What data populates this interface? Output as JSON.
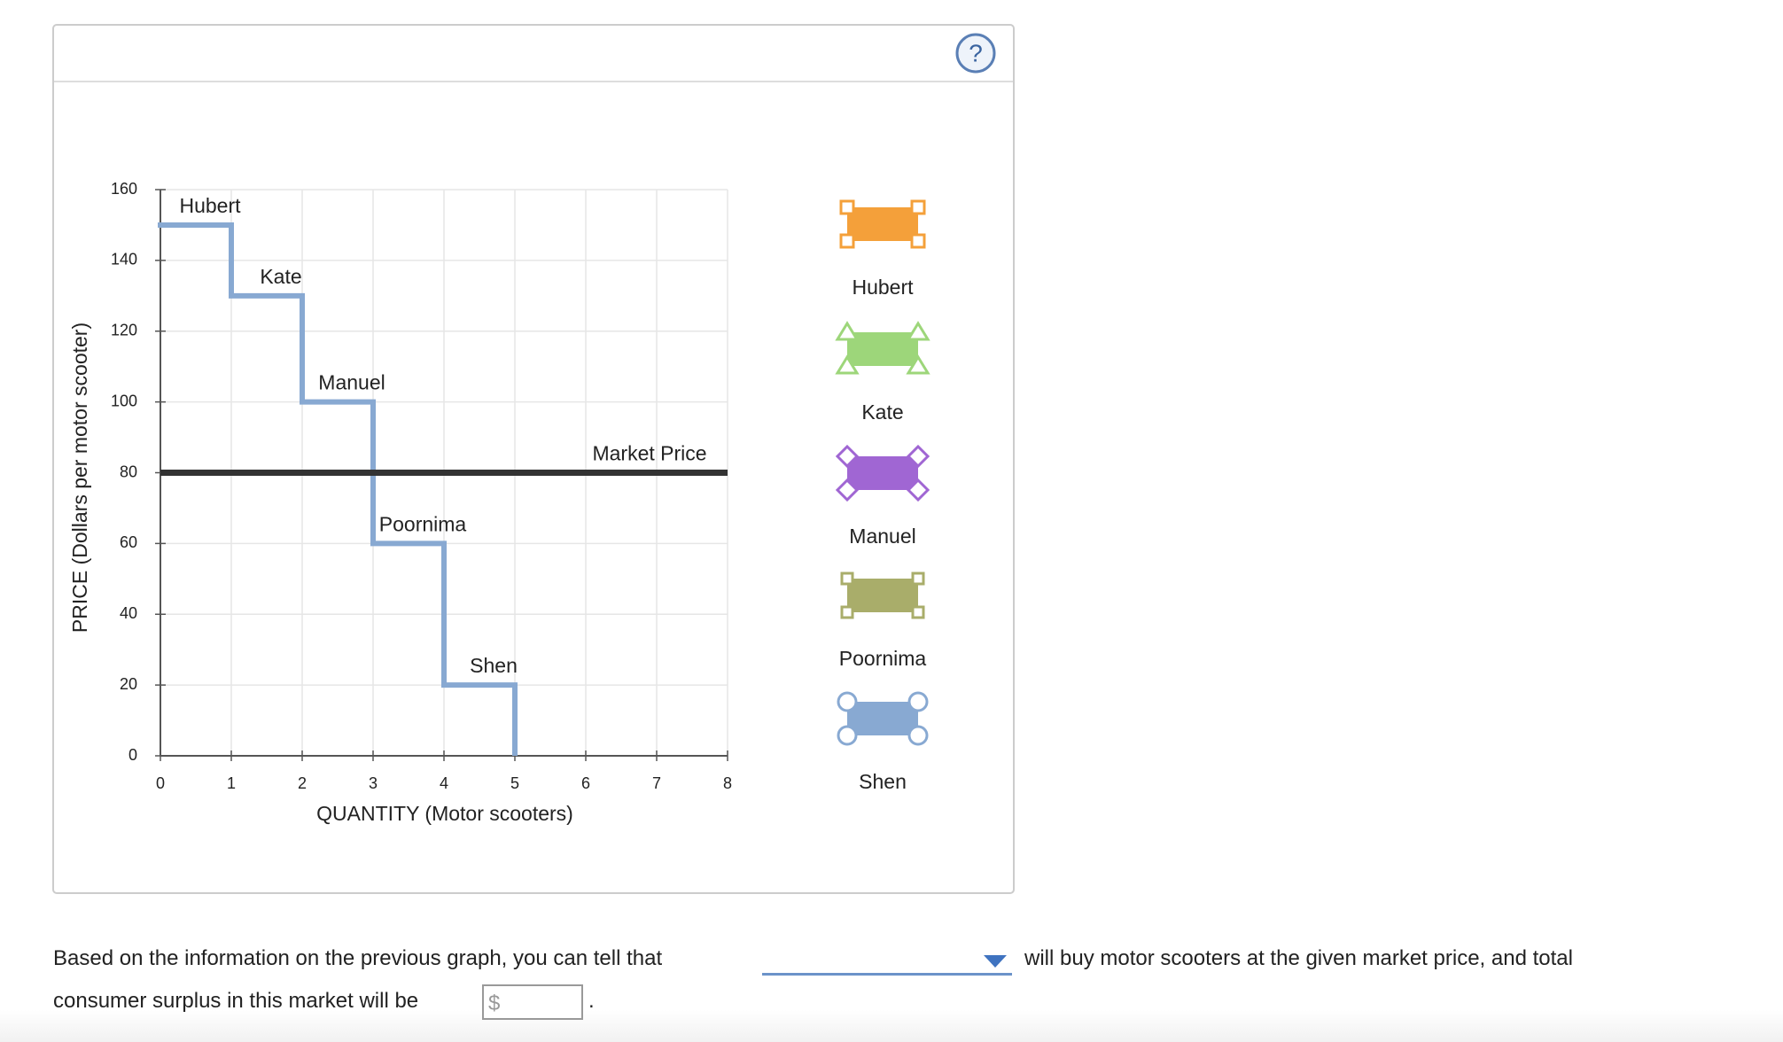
{
  "chart_data": {
    "type": "step",
    "xlabel": "QUANTITY (Motor scooters)",
    "ylabel": "PRICE (Dollars per motor scooter)",
    "xlim": [
      0,
      8
    ],
    "ylim": [
      0,
      160
    ],
    "xticks": [
      0,
      1,
      2,
      3,
      4,
      5,
      6,
      7,
      8
    ],
    "yticks": [
      0,
      20,
      40,
      60,
      80,
      100,
      120,
      140,
      160
    ],
    "grid": true,
    "color": "#88a9d2",
    "buyers": [
      {
        "name": "Hubert",
        "value": 150
      },
      {
        "name": "Kate",
        "value": 130
      },
      {
        "name": "Manuel",
        "value": 100
      },
      {
        "name": "Poornima",
        "value": 60
      },
      {
        "name": "Shen",
        "value": 20
      }
    ],
    "market_price": {
      "label": "Market Price",
      "value": 80,
      "color": "#333333"
    },
    "palette": [
      {
        "name": "Hubert",
        "color": "#f4a03a",
        "marker": "square"
      },
      {
        "name": "Kate",
        "color": "#9dd67a",
        "marker": "triangle"
      },
      {
        "name": "Manuel",
        "color": "#a066d3",
        "marker": "diamond"
      },
      {
        "name": "Poornima",
        "color": "#a9ad6a",
        "marker": "bar"
      },
      {
        "name": "Shen",
        "color": "#88a9d2",
        "marker": "circle"
      }
    ]
  },
  "question": {
    "text1": "Based on the information on the previous graph, you can tell that",
    "text2": "will buy motor scooters at the given market price, and total",
    "text3": "consumer surplus in this market will be",
    "currency": "$",
    "end": "."
  }
}
